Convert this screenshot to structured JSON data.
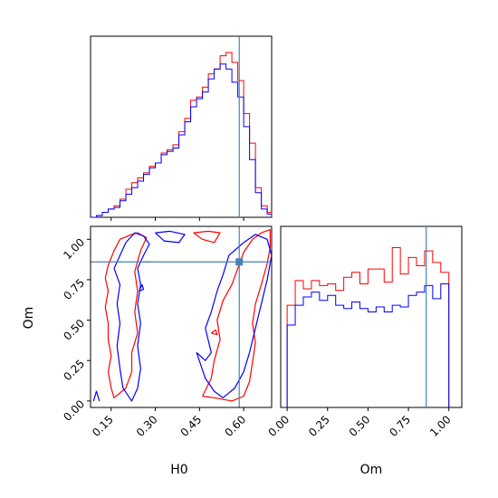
{
  "colors": {
    "series_a": "#ff0000",
    "series_b": "#0000ff",
    "truth": "#4682b4",
    "frame": "#000000"
  },
  "chart_data": [
    {
      "type": "histogram",
      "panel": "H0 marginal",
      "x_range": [
        0.08,
        0.695
      ],
      "bin_edges": [
        0.08,
        0.1,
        0.12,
        0.14,
        0.16,
        0.18,
        0.2,
        0.22,
        0.24,
        0.26,
        0.28,
        0.3,
        0.32,
        0.34,
        0.36,
        0.38,
        0.4,
        0.42,
        0.44,
        0.46,
        0.48,
        0.5,
        0.52,
        0.54,
        0.56,
        0.58,
        0.6,
        0.62,
        0.64,
        0.66,
        0.68,
        0.695
      ],
      "series": [
        {
          "color": "#ff0000",
          "values": [
            0,
            0.01,
            0.03,
            0.05,
            0.07,
            0.11,
            0.17,
            0.21,
            0.24,
            0.27,
            0.31,
            0.33,
            0.39,
            0.41,
            0.44,
            0.52,
            0.6,
            0.71,
            0.73,
            0.79,
            0.87,
            0.9,
            0.98,
            1.0,
            0.94,
            0.83,
            0.63,
            0.45,
            0.18,
            0.07,
            0.03
          ]
        },
        {
          "color": "#0000ff",
          "values": [
            0,
            0.01,
            0.03,
            0.05,
            0.06,
            0.1,
            0.14,
            0.18,
            0.22,
            0.26,
            0.3,
            0.33,
            0.38,
            0.4,
            0.42,
            0.5,
            0.58,
            0.67,
            0.72,
            0.76,
            0.84,
            0.9,
            0.93,
            0.9,
            0.82,
            0.73,
            0.55,
            0.35,
            0.15,
            0.05,
            0.02
          ]
        }
      ],
      "truth_x": 0.585
    },
    {
      "type": "contour",
      "panel": "H0 vs Om",
      "xlabel": "H0",
      "ylabel": "Om",
      "xlim": [
        0.08,
        0.695
      ],
      "ylim": [
        -0.04,
        1.08
      ],
      "x_ticks": [
        "0.15",
        "0.30",
        "0.45",
        "0.60"
      ],
      "y_ticks": [
        "0.00",
        "0.25",
        "0.50",
        "0.75",
        "1.00"
      ],
      "series": [
        {
          "color": "#ff0000",
          "contours": [
            [
              [
                0.22,
                1.03
              ],
              [
                0.18,
                1.0
              ],
              [
                0.16,
                0.93
              ],
              [
                0.14,
                0.84
              ],
              [
                0.13,
                0.76
              ],
              [
                0.14,
                0.68
              ],
              [
                0.13,
                0.58
              ],
              [
                0.14,
                0.48
              ],
              [
                0.14,
                0.38
              ],
              [
                0.15,
                0.28
              ],
              [
                0.14,
                0.18
              ],
              [
                0.15,
                0.08
              ],
              [
                0.16,
                0.02
              ],
              [
                0.2,
                0.08
              ],
              [
                0.22,
                0.18
              ],
              [
                0.22,
                0.3
              ],
              [
                0.24,
                0.42
              ],
              [
                0.23,
                0.55
              ],
              [
                0.24,
                0.68
              ],
              [
                0.23,
                0.8
              ],
              [
                0.25,
                0.93
              ],
              [
                0.27,
                1.01
              ],
              [
                0.24,
                1.04
              ],
              [
                0.22,
                1.03
              ]
            ],
            [
              [
                0.46,
                0.03
              ],
              [
                0.5,
                0.02
              ],
              [
                0.56,
                0.0
              ],
              [
                0.6,
                0.03
              ],
              [
                0.62,
                0.12
              ],
              [
                0.63,
                0.24
              ],
              [
                0.64,
                0.36
              ],
              [
                0.63,
                0.48
              ],
              [
                0.64,
                0.6
              ],
              [
                0.66,
                0.72
              ],
              [
                0.68,
                0.85
              ],
              [
                0.69,
                0.95
              ],
              [
                0.69,
                1.06
              ],
              [
                0.66,
                1.04
              ],
              [
                0.63,
                1.0
              ],
              [
                0.6,
                0.92
              ],
              [
                0.58,
                0.82
              ],
              [
                0.56,
                0.72
              ],
              [
                0.53,
                0.62
              ],
              [
                0.51,
                0.5
              ],
              [
                0.52,
                0.38
              ],
              [
                0.5,
                0.25
              ],
              [
                0.49,
                0.14
              ],
              [
                0.46,
                0.03
              ]
            ],
            [
              [
                0.43,
                1.04
              ],
              [
                0.48,
                1.05
              ],
              [
                0.52,
                1.04
              ],
              [
                0.5,
                0.98
              ],
              [
                0.46,
                1.0
              ],
              [
                0.43,
                1.04
              ]
            ],
            [
              [
                0.49,
                0.42
              ],
              [
                0.505,
                0.44
              ],
              [
                0.51,
                0.41
              ],
              [
                0.49,
                0.42
              ]
            ],
            [
              [
                0.26,
                0.86
              ],
              [
                0.285,
                0.86
              ]
            ]
          ]
        },
        {
          "color": "#0000ff",
          "contours": [
            [
              [
                0.16,
                0.82
              ],
              [
                0.18,
                0.9
              ],
              [
                0.2,
                0.98
              ],
              [
                0.23,
                1.04
              ],
              [
                0.26,
                1.02
              ],
              [
                0.28,
                0.97
              ],
              [
                0.26,
                0.9
              ],
              [
                0.24,
                0.82
              ],
              [
                0.25,
                0.72
              ],
              [
                0.24,
                0.6
              ],
              [
                0.25,
                0.48
              ],
              [
                0.24,
                0.34
              ],
              [
                0.25,
                0.2
              ],
              [
                0.24,
                0.08
              ],
              [
                0.22,
                0.0
              ],
              [
                0.19,
                0.08
              ],
              [
                0.18,
                0.2
              ],
              [
                0.17,
                0.34
              ],
              [
                0.18,
                0.48
              ],
              [
                0.17,
                0.6
              ],
              [
                0.18,
                0.72
              ],
              [
                0.16,
                0.82
              ]
            ],
            [
              [
                0.3,
                1.04
              ],
              [
                0.35,
                1.05
              ],
              [
                0.4,
                1.03
              ],
              [
                0.38,
                0.98
              ],
              [
                0.33,
                0.99
              ],
              [
                0.3,
                1.04
              ]
            ],
            [
              [
                0.44,
                0.3
              ],
              [
                0.47,
                0.25
              ],
              [
                0.49,
                0.3
              ],
              [
                0.47,
                0.45
              ],
              [
                0.49,
                0.55
              ],
              [
                0.51,
                0.68
              ],
              [
                0.53,
                0.78
              ],
              [
                0.55,
                0.9
              ],
              [
                0.6,
                0.98
              ],
              [
                0.64,
                1.03
              ],
              [
                0.68,
                1.0
              ],
              [
                0.695,
                0.9
              ],
              [
                0.68,
                0.75
              ],
              [
                0.66,
                0.6
              ],
              [
                0.64,
                0.45
              ],
              [
                0.62,
                0.3
              ],
              [
                0.6,
                0.18
              ],
              [
                0.57,
                0.08
              ],
              [
                0.53,
                0.02
              ],
              [
                0.5,
                0.06
              ],
              [
                0.47,
                0.14
              ],
              [
                0.44,
                0.3
              ]
            ],
            [
              [
                0.09,
                0.0
              ],
              [
                0.1,
                0.06
              ],
              [
                0.11,
                0.0
              ]
            ],
            [
              [
                0.245,
                0.68
              ],
              [
                0.255,
                0.72
              ],
              [
                0.26,
                0.69
              ],
              [
                0.245,
                0.68
              ]
            ]
          ]
        }
      ],
      "truth_point": [
        0.585,
        0.86
      ]
    },
    {
      "type": "histogram",
      "panel": "Om marginal",
      "xlabel": "Om",
      "x_range": [
        -0.04,
        1.08
      ],
      "x_ticks": [
        "0.00",
        "0.25",
        "0.50",
        "0.75",
        "1.00"
      ],
      "bin_edges": [
        0.0,
        0.05,
        0.1,
        0.15,
        0.2,
        0.25,
        0.3,
        0.35,
        0.4,
        0.45,
        0.5,
        0.55,
        0.6,
        0.65,
        0.7,
        0.75,
        0.8,
        0.85,
        0.9,
        0.95,
        1.0
      ],
      "series": [
        {
          "color": "#ff0000",
          "values": [
            0.62,
            0.77,
            0.72,
            0.77,
            0.74,
            0.75,
            0.71,
            0.79,
            0.82,
            0.75,
            0.84,
            0.84,
            0.76,
            0.97,
            0.81,
            0.91,
            0.86,
            0.95,
            0.88,
            0.82
          ]
        },
        {
          "color": "#0000ff",
          "values": [
            0.5,
            0.62,
            0.67,
            0.7,
            0.65,
            0.68,
            0.62,
            0.6,
            0.64,
            0.6,
            0.58,
            0.61,
            0.58,
            0.62,
            0.61,
            0.68,
            0.7,
            0.74,
            0.66,
            0.75
          ]
        }
      ],
      "truth_x": 0.86
    }
  ]
}
